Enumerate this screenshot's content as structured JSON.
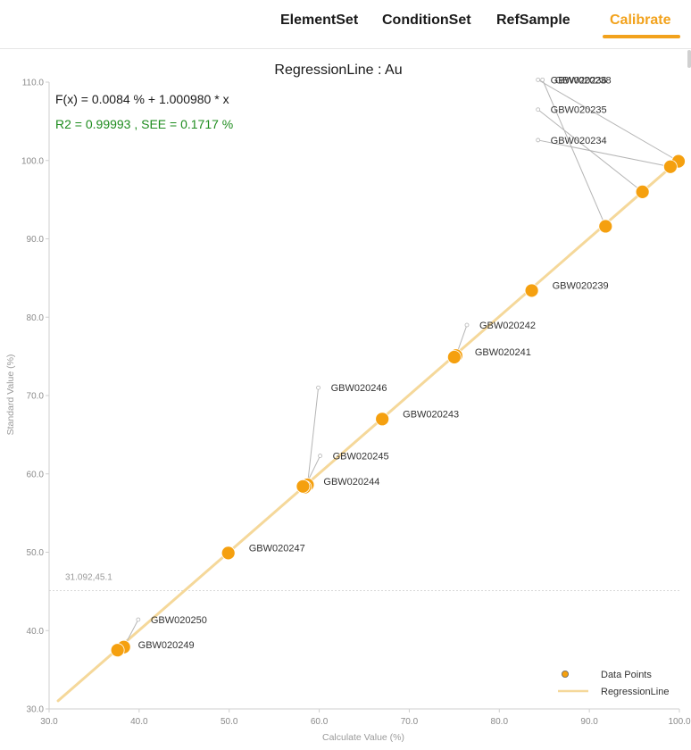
{
  "tabs": [
    {
      "label": "ElementSet",
      "active": false
    },
    {
      "label": "ConditionSet",
      "active": false
    },
    {
      "label": "RefSample",
      "active": false
    },
    {
      "label": "Calibrate",
      "active": true
    }
  ],
  "colors": {
    "accent": "#f2a21c",
    "point": "#f5a00f",
    "line": "#f5d89a",
    "r2_text": "#1e8c1e"
  },
  "chart_data": {
    "type": "scatter",
    "title": "RegressionLine : Au",
    "equation": "F(x) = 0.0084 % + 1.000980 * x",
    "stats": "R2 = 0.99993 , SEE = 0.1717 %",
    "xlabel": "Calculate Value (%)",
    "ylabel": "Standard Value (%)",
    "xlim": [
      30,
      100
    ],
    "ylim": [
      30,
      110
    ],
    "xticks": [
      "30.0",
      "40.0",
      "50.0",
      "60.0",
      "70.0",
      "80.0",
      "90.0",
      "100.0"
    ],
    "yticks": [
      "30.0",
      "40.0",
      "50.0",
      "60.0",
      "70.0",
      "80.0",
      "90.0",
      "100.0",
      "110.0"
    ],
    "regression": {
      "intercept": 0.0084,
      "slope": 1.00098
    },
    "cursor": {
      "label": "31.092,45.1",
      "x": 31.092,
      "y": 45.1
    },
    "points": [
      {
        "name": "GBW020236",
        "x": 99.9,
        "y": 99.9,
        "lx": 84.3,
        "ly": 110.3
      },
      {
        "name": "GBW020235",
        "x": 95.9,
        "y": 96.0,
        "lx": 84.3,
        "ly": 106.5
      },
      {
        "name": "GBW020234",
        "x": 99.0,
        "y": 99.2,
        "lx": 84.3,
        "ly": 102.6
      },
      {
        "name": "GBW020238",
        "x": 91.8,
        "y": 91.6,
        "lx": 84.8,
        "ly": 110.3
      },
      {
        "name": "GBW020239",
        "x": 83.6,
        "y": 83.4,
        "lx": null,
        "ly": null
      },
      {
        "name": "GBW020242",
        "x": 75.2,
        "y": 75.1,
        "lx": 76.4,
        "ly": 79.0
      },
      {
        "name": "GBW020241",
        "x": 75.0,
        "y": 74.9,
        "lx": null,
        "ly": null
      },
      {
        "name": "GBW020243",
        "x": 67.0,
        "y": 67.0,
        "lx": null,
        "ly": null
      },
      {
        "name": "GBW020246",
        "x": 58.7,
        "y": 58.6,
        "lx": 59.9,
        "ly": 71.0
      },
      {
        "name": "GBW020245",
        "x": 58.4,
        "y": 58.3,
        "lx": 60.1,
        "ly": 62.3
      },
      {
        "name": "GBW020244",
        "x": 58.2,
        "y": 58.4,
        "lx": null,
        "ly": null
      },
      {
        "name": "GBW020247",
        "x": 49.9,
        "y": 49.9,
        "lx": null,
        "ly": null
      },
      {
        "name": "GBW020250",
        "x": 38.3,
        "y": 37.9,
        "lx": 39.9,
        "ly": 41.4
      },
      {
        "name": "GBW020249",
        "x": 37.6,
        "y": 37.5,
        "lx": null,
        "ly": null
      }
    ],
    "legend": {
      "position": "bottom-right",
      "items": [
        {
          "label": "Data Points",
          "kind": "point"
        },
        {
          "label": "RegressionLine",
          "kind": "line"
        }
      ]
    }
  }
}
